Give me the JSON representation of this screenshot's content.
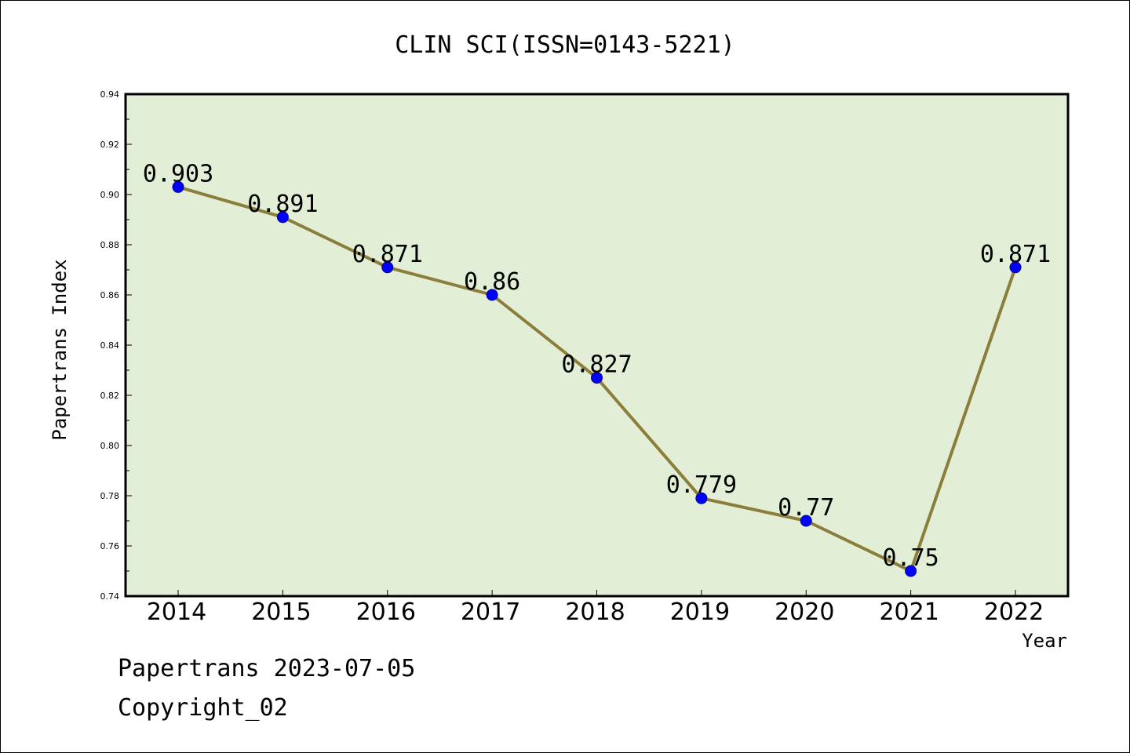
{
  "footer": {
    "line1": "Papertrans 2023-07-05",
    "line2": "Copyright_02"
  },
  "colors": {
    "plot_background": "#e2efd6",
    "line": "#8b7d3a",
    "marker": "#0000ff"
  },
  "chart_data": {
    "type": "line",
    "title": "CLIN SCI(ISSN=0143-5221)",
    "xlabel": "Year",
    "ylabel": "Papertrans Index",
    "categories": [
      "2014",
      "2015",
      "2016",
      "2017",
      "2018",
      "2019",
      "2020",
      "2021",
      "2022"
    ],
    "values": [
      0.903,
      0.891,
      0.871,
      0.86,
      0.827,
      0.779,
      0.77,
      0.75,
      0.871
    ],
    "data_labels": [
      "0.903",
      "0.891",
      "0.871",
      "0.86",
      "0.827",
      "0.779",
      "0.77",
      "0.75",
      "0.871"
    ],
    "ylim": [
      0.74,
      0.94
    ],
    "yticks": [
      "0.74",
      "0.76",
      "0.78",
      "0.80",
      "0.82",
      "0.84",
      "0.86",
      "0.88",
      "0.90",
      "0.92",
      "0.94"
    ],
    "grid": false,
    "legend": "none"
  }
}
